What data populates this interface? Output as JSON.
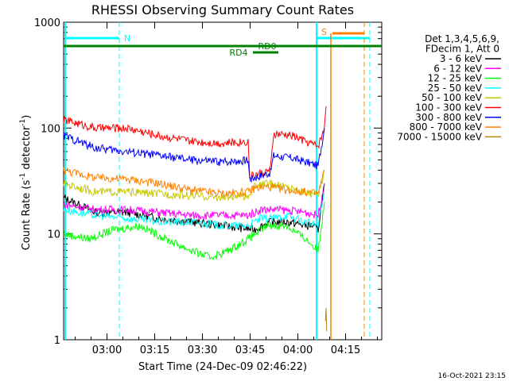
{
  "chart_data": {
    "type": "line",
    "title": "RHESSI Observing Summary Count Rates",
    "xlabel": "Start Time (24-Dec-09 02:46:22)",
    "ylabel_main": "Count Rate (s",
    "ylabel_sup1": "-1",
    "ylabel_mid": " detector",
    "ylabel_sup2": "-1",
    "ylabel_end": ")",
    "yscale": "log",
    "ylim": [
      1,
      1000
    ],
    "y_ticks": [
      "1",
      "10",
      "100",
      "1000"
    ],
    "xlim_minutes": [
      0,
      100
    ],
    "x_ticks": [
      {
        "label": "03:00",
        "minute": 13.63
      },
      {
        "label": "03:15",
        "minute": 28.63
      },
      {
        "label": "03:30",
        "minute": 43.63
      },
      {
        "label": "03:45",
        "minute": 58.63
      },
      {
        "label": "04:00",
        "minute": 73.63
      },
      {
        "label": "04:15",
        "minute": 88.63
      }
    ],
    "legend_header": [
      "Det 1,3,4,5,6,9,",
      "FDecim 1, Att 0"
    ],
    "series": [
      {
        "name": "3 - 6 keV",
        "color": "#000000",
        "x": [
          0,
          10,
          20,
          30,
          40,
          50,
          60,
          65,
          70,
          76,
          78,
          80,
          82
        ],
        "values": [
          22,
          16,
          16,
          14,
          13,
          12,
          11,
          13,
          13,
          12,
          12,
          11,
          30
        ]
      },
      {
        "name": "6 - 12 keV",
        "color": "#ff00ff",
        "x": [
          0,
          10,
          20,
          30,
          40,
          50,
          58,
          62,
          68,
          76,
          80,
          82
        ],
        "values": [
          19,
          17,
          17,
          16,
          15,
          15,
          15,
          17,
          17,
          16,
          15,
          30
        ]
      },
      {
        "name": "12 - 25 keV",
        "color": "#00ff00",
        "x": [
          0,
          8,
          16,
          24,
          32,
          40,
          46,
          52,
          58,
          64,
          70,
          76,
          80,
          82
        ],
        "values": [
          10,
          9,
          11,
          12,
          9,
          7,
          6,
          7,
          9,
          12,
          12,
          9,
          7,
          20
        ]
      },
      {
        "name": "25 - 50 keV",
        "color": "#00ffff",
        "x": [
          0,
          10,
          20,
          30,
          40,
          50,
          58,
          62,
          66,
          70,
          76,
          80,
          82
        ],
        "values": [
          17,
          15,
          14,
          13,
          13,
          12,
          12,
          14,
          14,
          15,
          13,
          12,
          25
        ]
      },
      {
        "name": "50 - 100 keV",
        "color": "#c8c800",
        "x": [
          0,
          10,
          20,
          30,
          40,
          50,
          58,
          60,
          64,
          70,
          76,
          80,
          82
        ],
        "values": [
          30,
          25,
          25,
          24,
          23,
          22,
          23,
          28,
          30,
          28,
          25,
          23,
          40
        ]
      },
      {
        "name": "100 - 300 keV",
        "color": "#ff0000",
        "x": [
          0,
          10,
          20,
          30,
          40,
          50,
          58,
          58.5,
          65,
          66,
          72,
          76,
          80,
          82,
          82.5
        ],
        "values": [
          120,
          100,
          100,
          85,
          75,
          72,
          75,
          35,
          40,
          88,
          85,
          75,
          68,
          100,
          160
        ]
      },
      {
        "name": "300 - 800 keV",
        "color": "#0000ff",
        "x": [
          0,
          10,
          20,
          30,
          40,
          50,
          58,
          58.5,
          65,
          66,
          72,
          76,
          80,
          82
        ],
        "values": [
          85,
          65,
          60,
          55,
          50,
          48,
          50,
          33,
          38,
          55,
          52,
          48,
          44,
          100
        ]
      },
      {
        "name": "800 - 7000 keV",
        "color": "#ff8000",
        "x": [
          0,
          10,
          20,
          30,
          40,
          50,
          58,
          60,
          64,
          70,
          76,
          80,
          82
        ],
        "values": [
          40,
          34,
          33,
          30,
          26,
          24,
          25,
          27,
          28,
          26,
          25,
          24,
          40
        ]
      },
      {
        "name": "7000 - 15000 keV",
        "color": "#b8860b",
        "x": [
          82.3,
          82.5,
          82.7
        ],
        "values": [
          1.5,
          2,
          1.2
        ]
      }
    ],
    "annotations": [
      {
        "label": "N",
        "color": "#00ffff"
      },
      {
        "label": "S",
        "color": "#ff8000"
      },
      {
        "label": "RD0",
        "color": "#008000"
      },
      {
        "label": "RD4",
        "color": "#008000"
      }
    ],
    "footer_timestamp": "16-Oct-2021 23:15"
  }
}
